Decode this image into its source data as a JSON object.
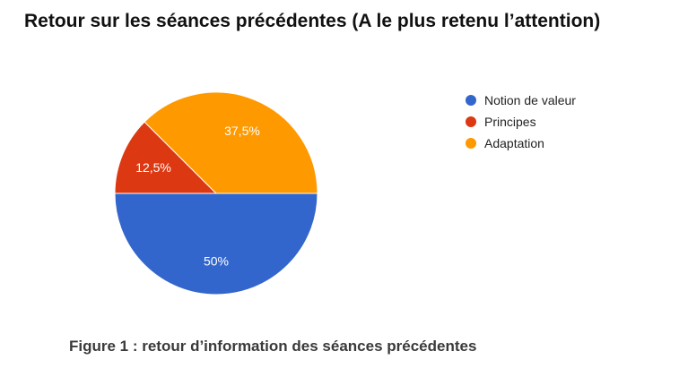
{
  "title": "Retour sur les séances précédentes (A le plus retenu l’attention)",
  "caption": "Figure 1 : retour d’information des séances précédentes",
  "chart_data": {
    "type": "pie",
    "categories": [
      "Notion de valeur",
      "Principes",
      "Adaptation"
    ],
    "values": [
      50,
      12.5,
      37.5
    ],
    "labels": [
      "50%",
      "12,5%",
      "37,5%"
    ],
    "colors": [
      "#3366cc",
      "#dc3912",
      "#ff9900"
    ],
    "legend": "right"
  }
}
